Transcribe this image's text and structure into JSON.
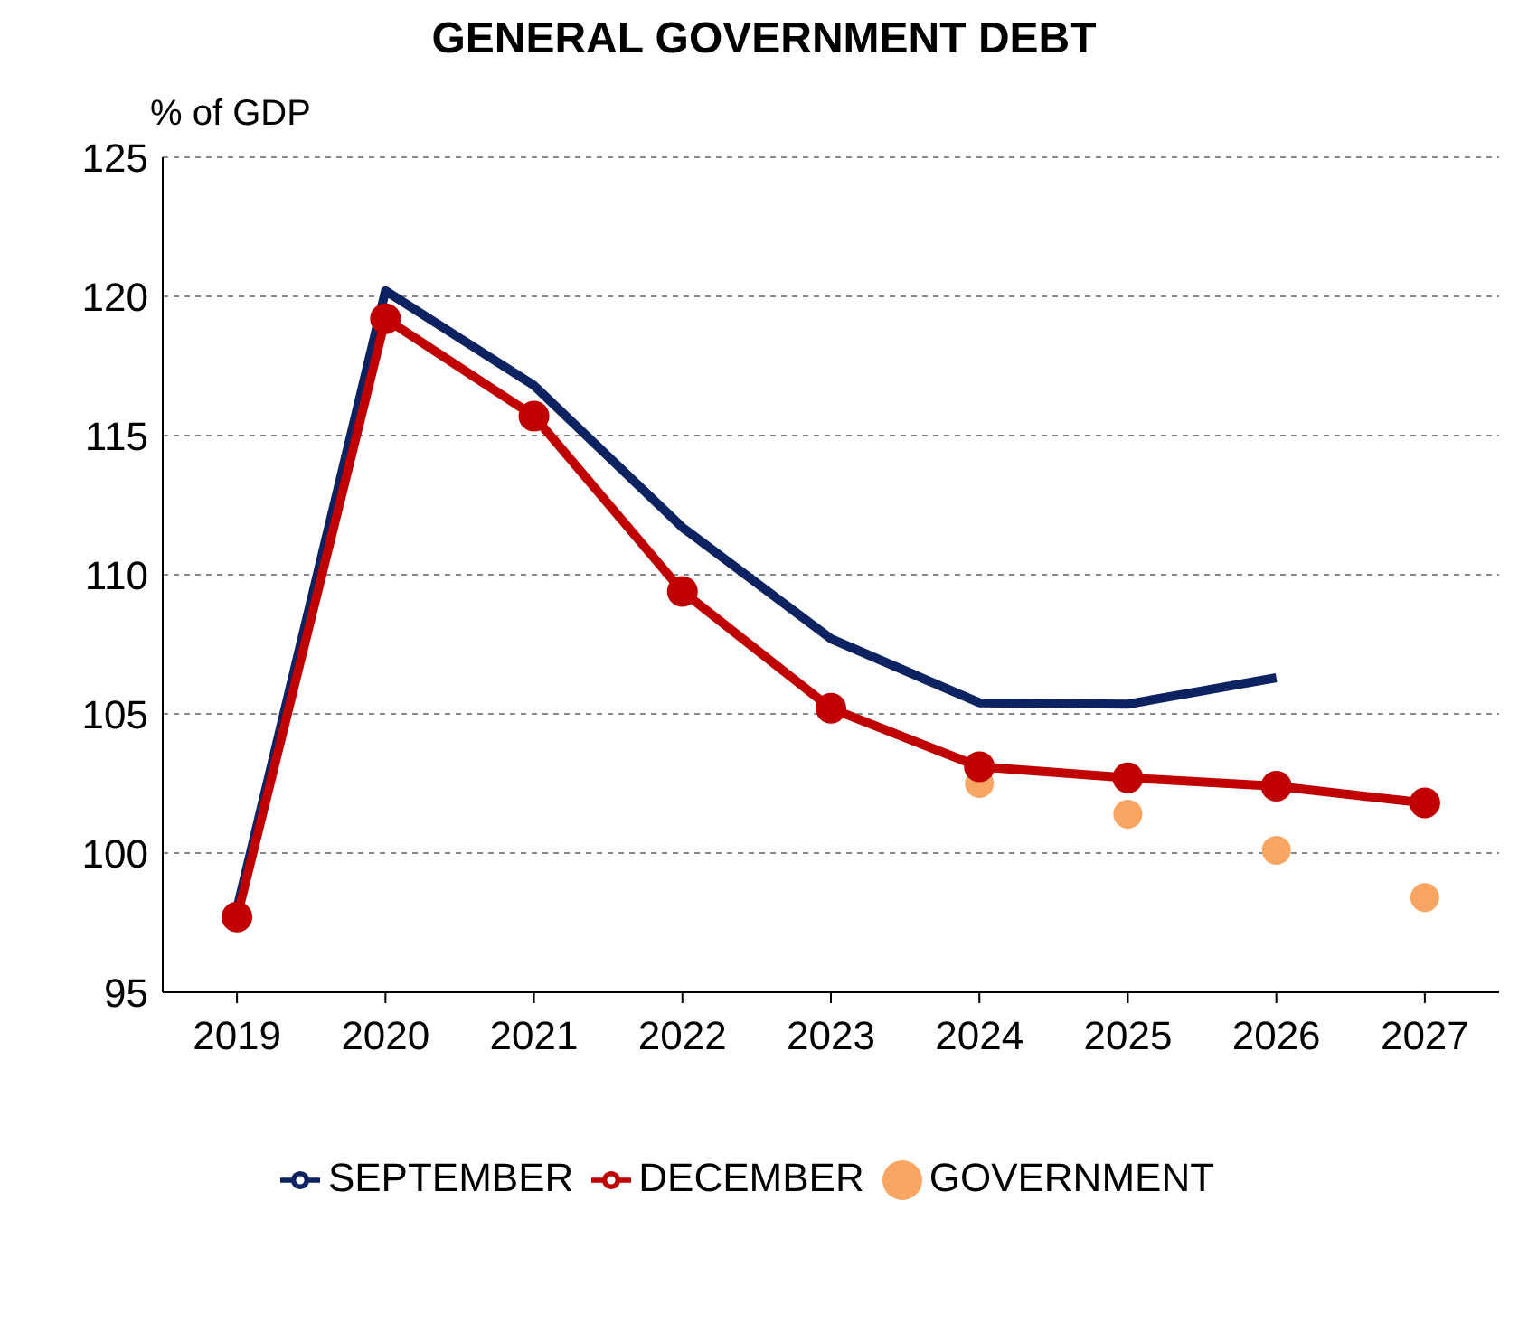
{
  "chart_data": {
    "type": "line",
    "title": "GENERAL GOVERNMENT DEBT",
    "ylabel": "% of GDP",
    "categories": [
      "2019",
      "2020",
      "2021",
      "2022",
      "2023",
      "2024",
      "2025",
      "2026",
      "2027"
    ],
    "series": [
      {
        "name": "SEPTEMBER",
        "color": "#0d2260",
        "marker": "none",
        "values": [
          98.0,
          120.2,
          116.8,
          111.7,
          107.7,
          105.4,
          105.35,
          106.3,
          null
        ]
      },
      {
        "name": "DECEMBER",
        "color": "#c00000",
        "marker": "circle",
        "values": [
          97.7,
          119.2,
          115.7,
          109.4,
          105.2,
          103.1,
          102.7,
          102.4,
          101.8
        ]
      },
      {
        "name": "GOVERNMENT",
        "type": "scatter",
        "color": "#f9a664",
        "marker": "circle",
        "values": [
          null,
          null,
          null,
          null,
          null,
          102.5,
          101.4,
          100.1,
          98.4
        ]
      }
    ],
    "ylim": [
      95,
      125
    ],
    "yticks": [
      95,
      100,
      105,
      110,
      115,
      120,
      125
    ],
    "grid": "y",
    "legend": "bottom"
  }
}
